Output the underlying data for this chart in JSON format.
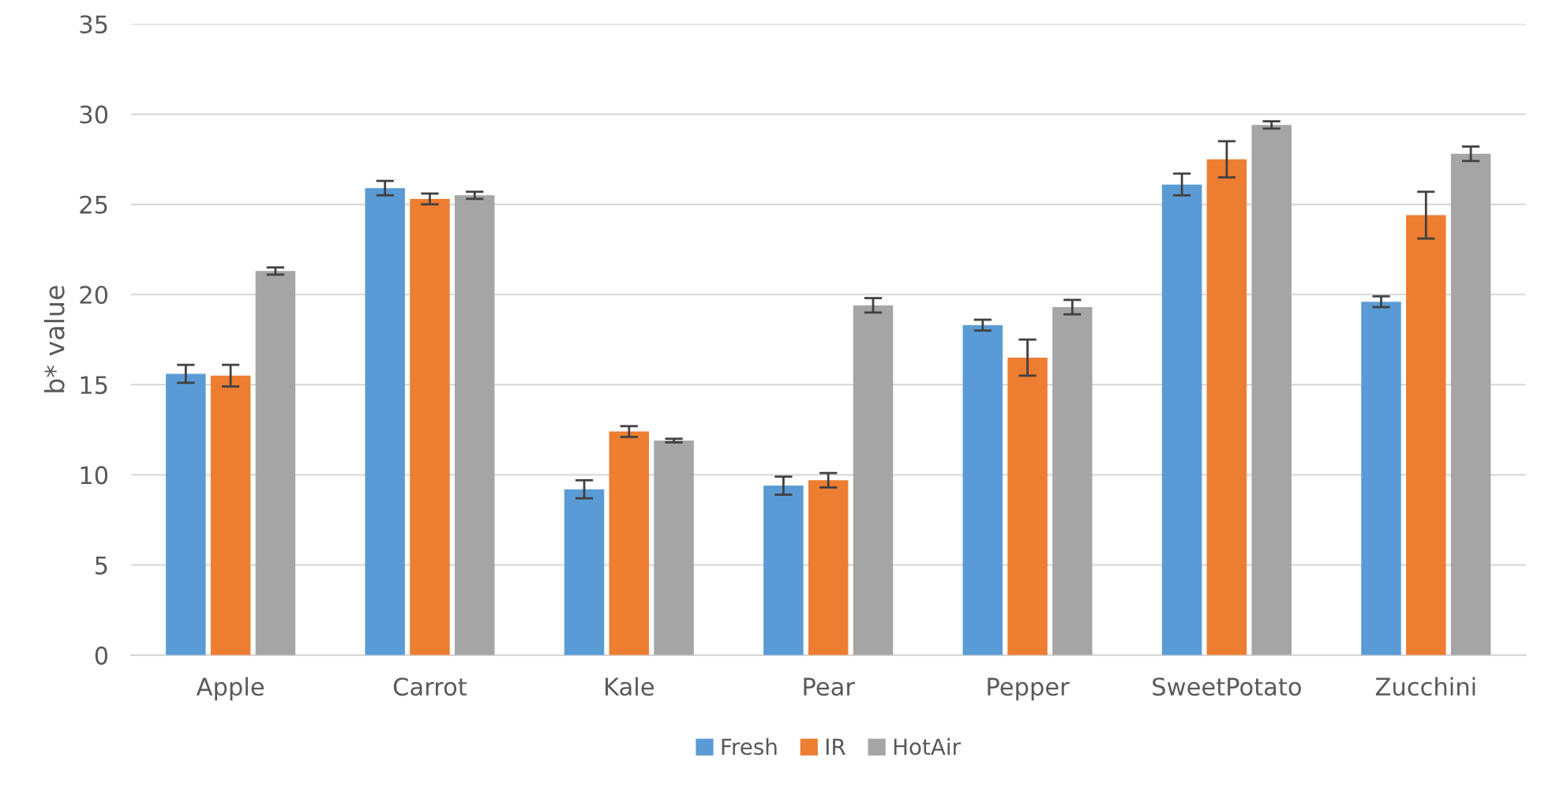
{
  "chart_data": {
    "type": "bar",
    "ylabel": "b* value",
    "categories": [
      "Apple",
      "Carrot",
      "Kale",
      "Pear",
      "Pepper",
      "SweetPotato",
      "Zucchini"
    ],
    "series": [
      {
        "name": "Fresh",
        "color": "#5b9bd5",
        "values": [
          15.6,
          25.9,
          9.2,
          9.4,
          18.3,
          26.1,
          19.6
        ],
        "errors": [
          0.5,
          0.4,
          0.5,
          0.5,
          0.3,
          0.6,
          0.3
        ]
      },
      {
        "name": "IR",
        "color": "#ed7d31",
        "values": [
          15.5,
          25.3,
          12.4,
          9.7,
          16.5,
          27.5,
          24.4
        ],
        "errors": [
          0.6,
          0.3,
          0.3,
          0.4,
          1.0,
          1.0,
          1.3
        ]
      },
      {
        "name": "HotAir",
        "color": "#a5a5a5",
        "values": [
          21.3,
          25.5,
          11.9,
          19.4,
          19.3,
          29.4,
          27.8
        ],
        "errors": [
          0.2,
          0.2,
          0.1,
          0.4,
          0.4,
          0.2,
          0.4
        ]
      }
    ],
    "ylim": [
      0,
      35
    ],
    "yticks": [
      0,
      5,
      10,
      15,
      20,
      25,
      30,
      35
    ],
    "grid": "y",
    "legend": "bottom"
  }
}
